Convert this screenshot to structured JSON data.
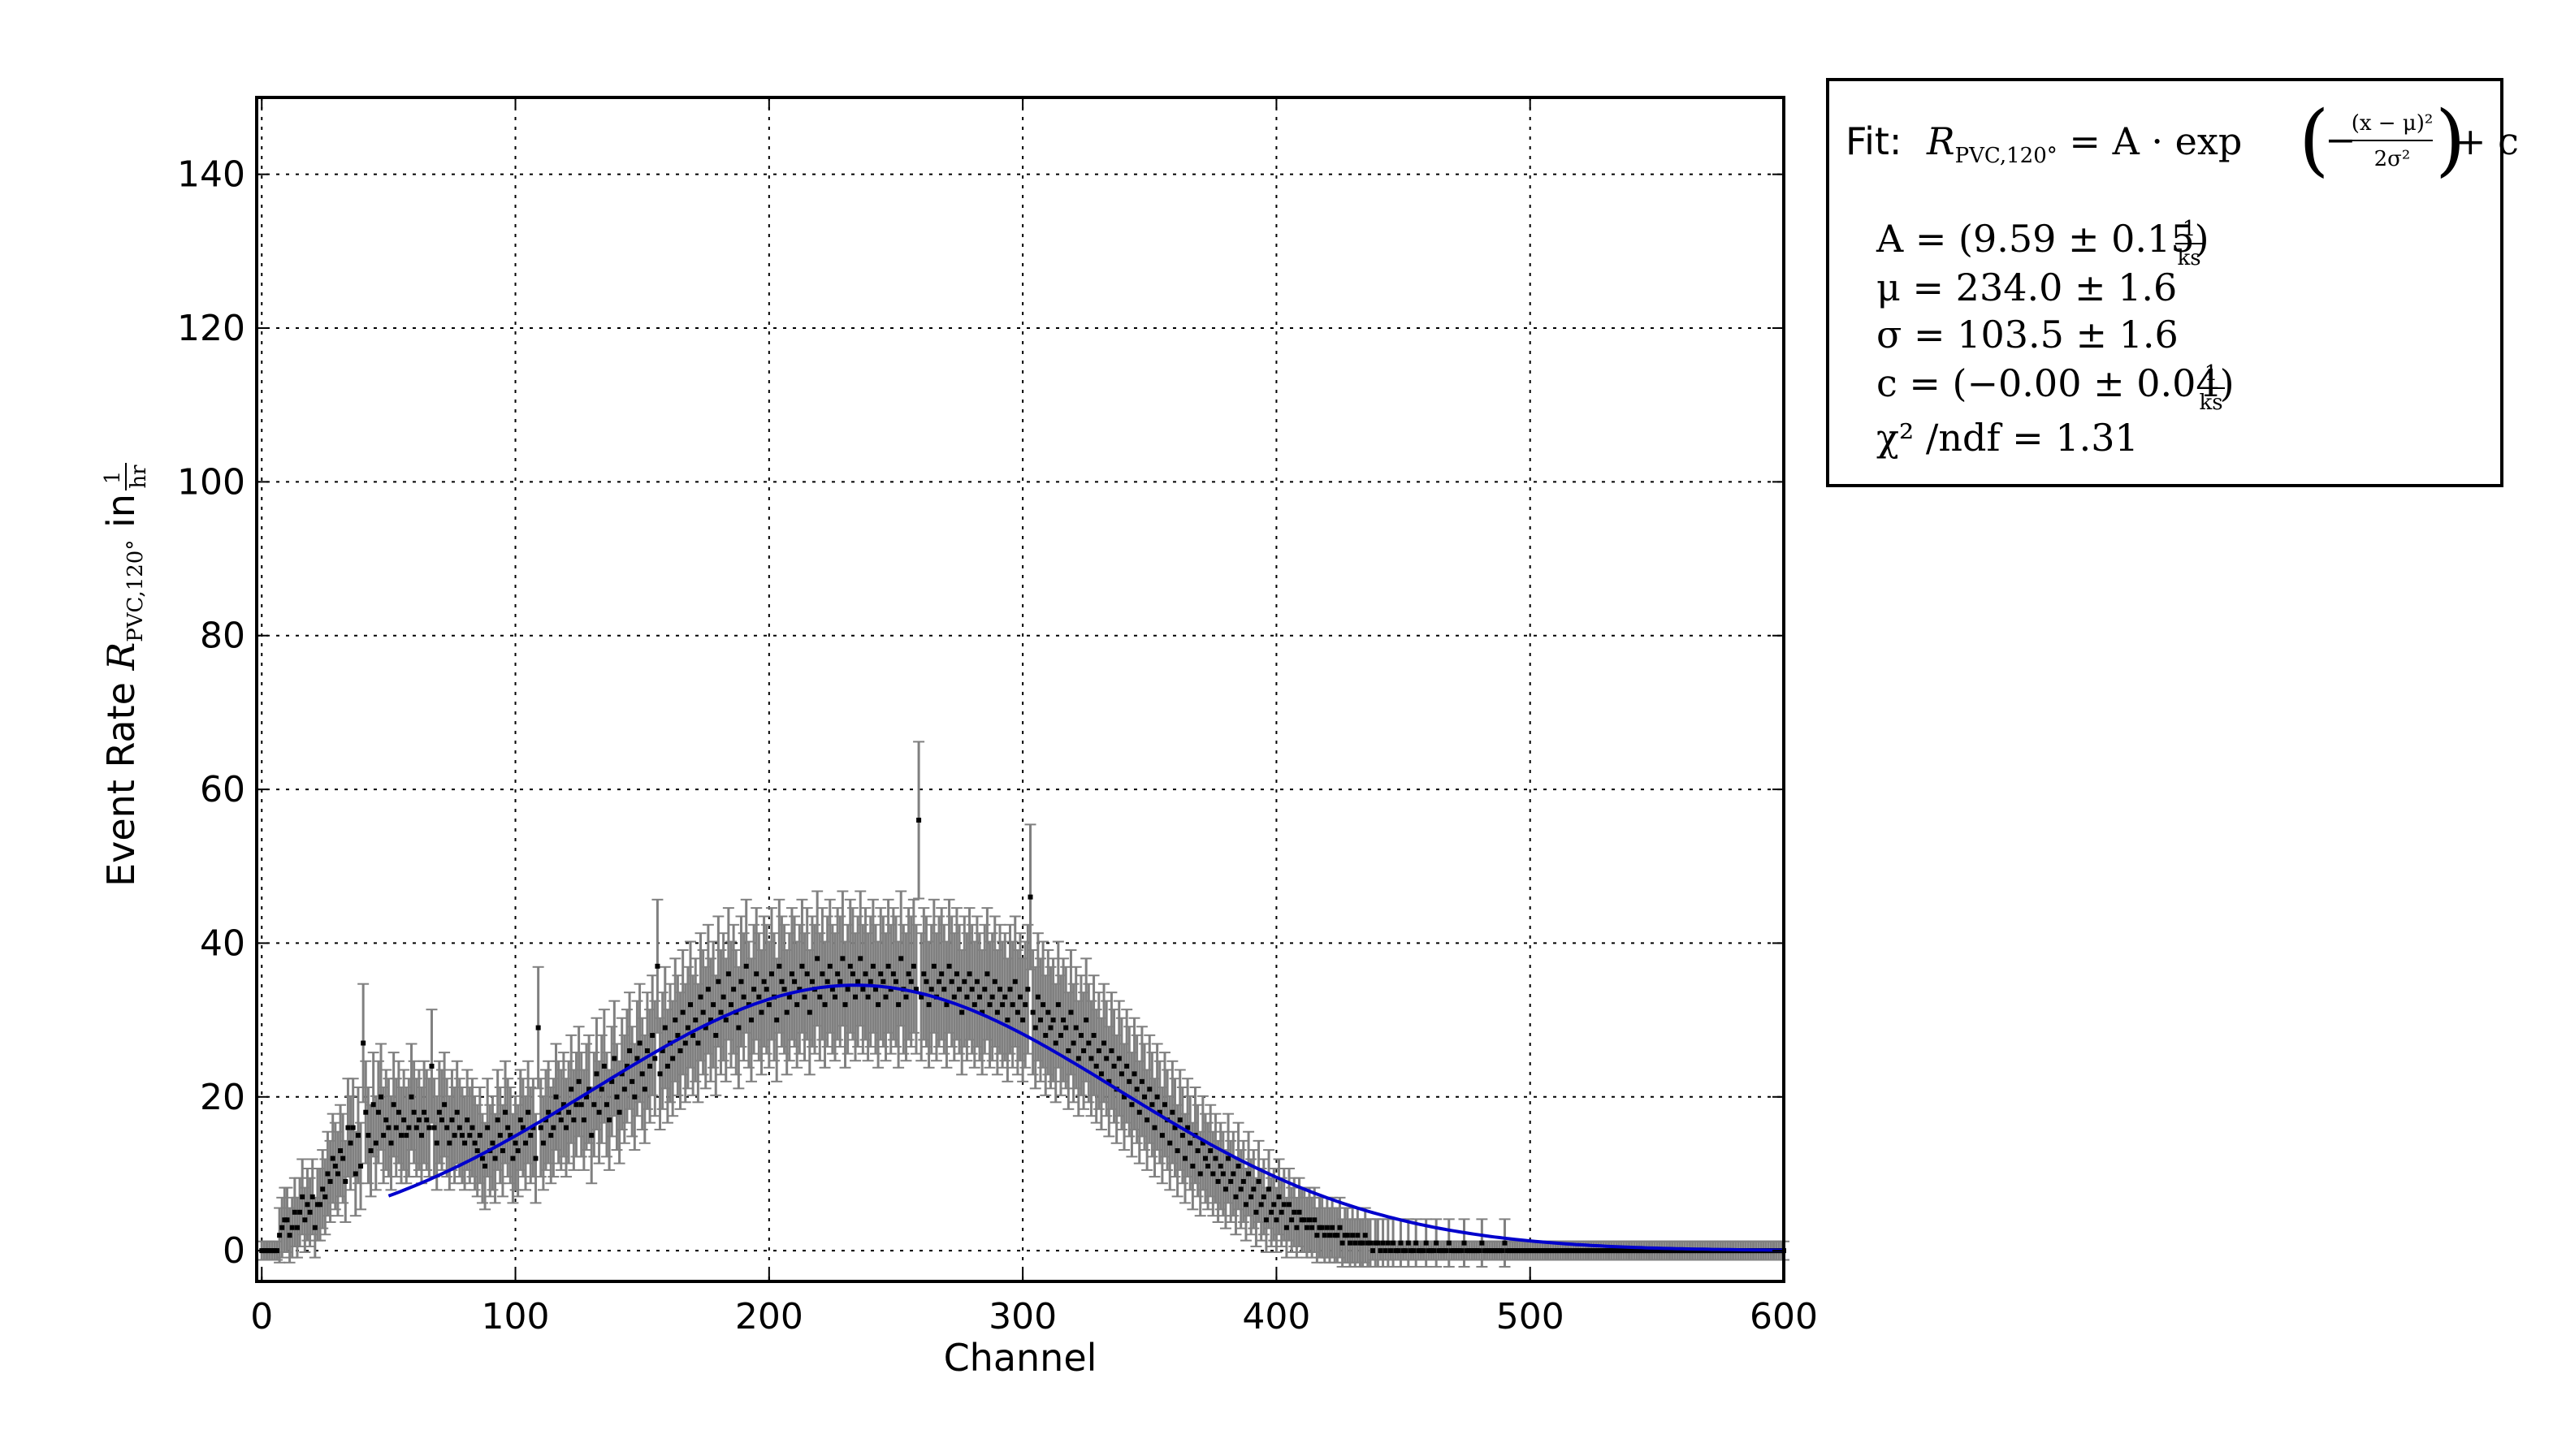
{
  "chart_data": {
    "type": "scatter",
    "title": "",
    "xlabel": "Channel",
    "ylabel_prefix": "Event Rate ",
    "ylabel_symbol": "R",
    "ylabel_subscript": "PVC,120°",
    "ylabel_in": " in ",
    "ylabel_unit_num": "1",
    "ylabel_unit_den": "hr",
    "xlim": [
      -2,
      600
    ],
    "ylim": [
      -4,
      150
    ],
    "xticks": [
      0,
      100,
      200,
      300,
      400,
      500,
      600
    ],
    "yticks": [
      0,
      20,
      40,
      60,
      80,
      100,
      120,
      140
    ],
    "grid": true,
    "colors": {
      "data": "#000000",
      "errorbar": "#808080",
      "fit": "#0000cc"
    },
    "series": [
      {
        "style": "points-with-errorbars",
        "x_start": 0,
        "x_step": 1,
        "y": [
          0,
          0,
          0,
          0,
          0,
          0,
          0,
          2,
          3,
          4,
          4,
          2,
          3,
          5,
          3,
          5,
          7,
          4,
          6,
          5,
          7,
          3,
          6,
          6,
          8,
          7,
          10,
          9,
          12,
          11,
          10,
          13,
          12,
          9,
          16,
          14,
          16,
          10,
          15,
          11,
          27,
          18,
          15,
          13,
          19,
          14,
          18,
          20,
          15,
          17,
          16,
          14,
          19,
          16,
          18,
          15,
          17,
          15,
          16,
          20,
          18,
          16,
          17,
          15,
          18,
          17,
          16,
          24,
          16,
          14,
          18,
          17,
          19,
          16,
          14,
          17,
          15,
          18,
          16,
          15,
          14,
          17,
          15,
          16,
          14,
          13,
          15,
          12,
          11,
          16,
          13,
          14,
          12,
          17,
          15,
          13,
          18,
          16,
          15,
          12,
          14,
          13,
          17,
          16,
          14,
          18,
          15,
          16,
          12,
          29,
          16,
          14,
          17,
          18,
          15,
          16,
          20,
          18,
          17,
          19,
          16,
          18,
          21,
          17,
          19,
          22,
          19,
          17,
          20,
          21,
          15,
          19,
          23,
          18,
          21,
          24,
          19,
          17,
          22,
          25,
          20,
          18,
          23,
          21,
          24,
          26,
          22,
          20,
          25,
          27,
          23,
          21,
          26,
          24,
          28,
          25,
          37,
          23,
          26,
          29,
          24,
          27,
          25,
          30,
          28,
          26,
          31,
          27,
          29,
          32,
          28,
          30,
          27,
          33,
          31,
          29,
          34,
          30,
          32,
          28,
          35,
          31,
          33,
          30,
          36,
          32,
          34,
          31,
          29,
          35,
          33,
          37,
          32,
          30,
          34,
          36,
          33,
          31,
          35,
          34,
          32,
          36,
          33,
          30,
          37,
          35,
          34,
          31,
          33,
          36,
          35,
          32,
          34,
          37,
          33,
          36,
          31,
          35,
          34,
          38,
          33,
          36,
          32,
          35,
          37,
          34,
          33,
          36,
          35,
          38,
          32,
          34,
          37,
          36,
          33,
          35,
          38,
          34,
          36,
          33,
          35,
          37,
          34,
          32,
          36,
          35,
          33,
          37,
          34,
          36,
          35,
          32,
          38,
          34,
          33,
          36,
          35,
          37,
          34,
          56,
          33,
          36,
          35,
          32,
          34,
          37,
          33,
          35,
          36,
          34,
          32,
          37,
          35,
          33,
          36,
          34,
          31,
          35,
          33,
          36,
          34,
          32,
          35,
          33,
          31,
          34,
          36,
          32,
          33,
          35,
          31,
          34,
          32,
          33,
          30,
          34,
          32,
          35,
          31,
          33,
          30,
          32,
          34,
          46,
          31,
          29,
          33,
          30,
          32,
          28,
          31,
          29,
          30,
          27,
          32,
          28,
          30,
          29,
          26,
          31,
          27,
          29,
          25,
          28,
          26,
          30,
          27,
          25,
          28,
          24,
          26,
          23,
          27,
          25,
          22,
          26,
          24,
          21,
          25,
          23,
          20,
          24,
          22,
          19,
          23,
          21,
          18,
          22,
          20,
          17,
          21,
          19,
          16,
          20,
          18,
          15,
          19,
          17,
          14,
          18,
          16,
          13,
          17,
          15,
          12,
          16,
          14,
          11,
          15,
          13,
          10,
          14,
          12,
          11,
          13,
          10,
          12,
          9,
          11,
          10,
          8,
          12,
          9,
          10,
          7,
          11,
          8,
          9,
          6,
          10,
          7,
          8,
          5,
          9,
          6,
          7,
          4,
          8,
          5,
          6,
          4,
          7,
          5,
          6,
          3,
          6,
          4,
          5,
          3,
          5,
          4,
          4,
          3,
          4,
          3,
          4,
          2,
          3,
          3,
          2,
          3,
          2,
          3,
          2,
          2,
          3,
          1,
          2,
          2,
          1,
          2,
          1,
          2,
          1,
          1,
          2,
          1,
          1,
          0,
          1,
          1,
          0,
          1,
          0,
          1,
          0,
          1,
          0,
          0,
          1,
          0,
          0,
          1,
          0,
          0,
          1,
          0,
          0,
          0,
          1,
          0,
          0,
          0,
          1,
          0,
          0,
          0,
          0,
          1,
          0,
          0,
          0,
          0,
          0,
          1,
          0,
          0,
          0,
          0,
          0,
          0,
          1,
          0,
          0,
          0,
          0,
          0,
          0,
          0,
          0,
          1,
          0,
          0,
          0,
          0,
          0,
          0,
          0,
          0,
          0,
          0,
          0,
          0,
          0,
          0,
          0,
          0,
          0,
          0,
          0,
          0,
          0,
          0,
          0,
          0,
          0,
          0,
          0,
          0,
          0,
          0,
          0,
          0,
          0,
          0,
          0,
          0,
          0,
          0,
          0,
          0,
          0,
          0,
          0,
          0,
          0,
          0,
          0,
          0,
          0,
          0,
          0,
          0,
          0,
          0,
          0,
          0,
          0,
          0,
          0,
          0,
          0,
          0,
          0,
          0,
          0,
          0,
          0,
          0,
          0,
          0,
          0,
          0,
          0,
          0,
          0,
          0,
          0,
          0,
          0,
          0,
          0,
          0,
          0,
          0,
          0,
          0,
          0,
          0,
          0,
          0,
          0,
          0,
          0,
          0,
          0,
          0,
          0,
          0,
          0,
          0,
          0,
          0,
          0,
          0,
          0,
          0,
          0,
          0,
          0,
          0,
          0,
          0
        ],
        "yerr_approx": 6
      },
      {
        "style": "line",
        "fit": {
          "A_per_ks": 9.59,
          "mu": 234.0,
          "sigma": 103.5,
          "c_per_ks": 0.0,
          "x_from": 50,
          "x_to": 600
        }
      }
    ]
  },
  "fit_box": {
    "prefix": "Fit: ",
    "formula_lhs_symbol": "R",
    "formula_lhs_sub": "PVC,120°",
    "formula_rhs_a": " = A · exp",
    "formula_rhs_num": "(x − μ)²",
    "formula_rhs_den": "2σ²",
    "formula_rhs_c": " + c",
    "A_line": "A = (9.59 ± 0.15) ",
    "mu_line": "μ = 234.0 ± 1.6",
    "sigma_line": "σ = 103.5 ± 1.6",
    "c_line": "c = (−0.00 ± 0.04) ",
    "unit_num": "1",
    "unit_den": "ks",
    "chi_line": "χ² /ndf = 1.31"
  }
}
